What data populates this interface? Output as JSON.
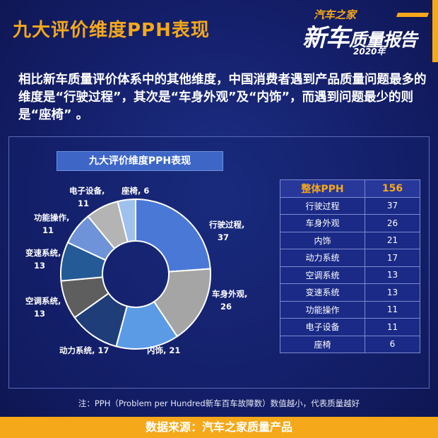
{
  "header": {
    "title": "九大评价维度PPH表现",
    "logo_top": "汽车之家",
    "logo_main_big": "新车",
    "logo_main_small": "质量报告",
    "logo_year": "2020年"
  },
  "intro_text": "相比新车质量评价体系中的其他维度，中国消费者遇到产品质量问题最多的维度是“行驶过程”，其次是“车身外观”及“内饰”，而遇到问题最少的则是“座椅”  。",
  "table": {
    "header_label": "整体PPH",
    "header_value": "156",
    "rows": [
      {
        "name": "行驶过程",
        "value": "37"
      },
      {
        "name": "车身外观",
        "value": "26"
      },
      {
        "name": "内饰",
        "value": "21"
      },
      {
        "name": "动力系统",
        "value": "17"
      },
      {
        "name": "空调系统",
        "value": "13"
      },
      {
        "name": "变速系统",
        "value": "13"
      },
      {
        "name": "功能操作",
        "value": "11"
      },
      {
        "name": "电子设备",
        "value": "11"
      },
      {
        "name": "座椅",
        "value": "6"
      }
    ]
  },
  "note": "注：PPH（Problem per Hundred新车百车故障数）数值越小，代表质量越好",
  "footer": "数据来源：汽车之家质量产品",
  "chart_data": {
    "type": "pie",
    "title": "九大评价维度PPH表现",
    "donut": true,
    "categories": [
      "行驶过程",
      "车身外观",
      "内饰",
      "动力系统",
      "空调系统",
      "变速系统",
      "功能操作",
      "电子设备",
      "座椅"
    ],
    "values": [
      37,
      26,
      21,
      17,
      13,
      13,
      11,
      11,
      6
    ],
    "labels": [
      "行驶过程,",
      "车身外观,",
      "内饰, 21",
      "动力系统, 17",
      "空调系统,",
      "变速系统,",
      "功能操作,",
      "电子设备,",
      "座椅, 6"
    ],
    "label_values": [
      "37",
      "26",
      "",
      "",
      "13",
      "13",
      "11",
      "11",
      ""
    ],
    "colors": [
      "#4a78d6",
      "#a5a5a5",
      "#5b9be6",
      "#1f3d78",
      "#5e5e5e",
      "#245a96",
      "#6f93d8",
      "#b4b4b4",
      "#9fc1ee"
    ]
  }
}
